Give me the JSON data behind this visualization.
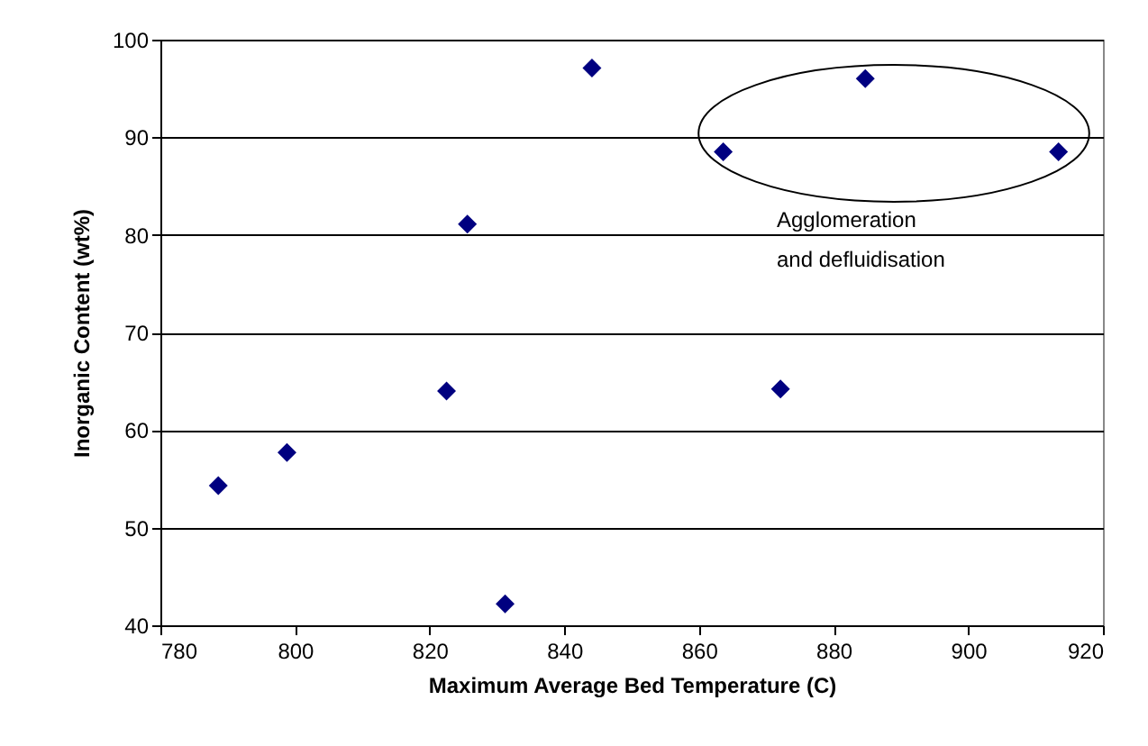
{
  "chart_data": {
    "type": "scatter",
    "xlabel": "Maximum Average Bed Temperature (C)",
    "ylabel": "Inorganic Content (wt%)",
    "x": [
      788.6,
      798.8,
      822.5,
      825.6,
      831.2,
      844.1,
      863.6,
      872.1,
      884.7,
      913.4
    ],
    "values": [
      54.3,
      57.7,
      64.0,
      81.1,
      42.2,
      97.1,
      88.5,
      64.2,
      96.0,
      88.5
    ],
    "color": "#000080",
    "marker": "diamond",
    "grid": "y",
    "xlim": [
      780,
      920
    ],
    "xticks": [
      780,
      800,
      820,
      840,
      860,
      880,
      900,
      920
    ],
    "ylim": [
      40,
      100
    ],
    "yticks": [
      40,
      50,
      60,
      70,
      80,
      90,
      100
    ],
    "annotations": [
      "Agglomeration\nand defluidisation"
    ]
  }
}
